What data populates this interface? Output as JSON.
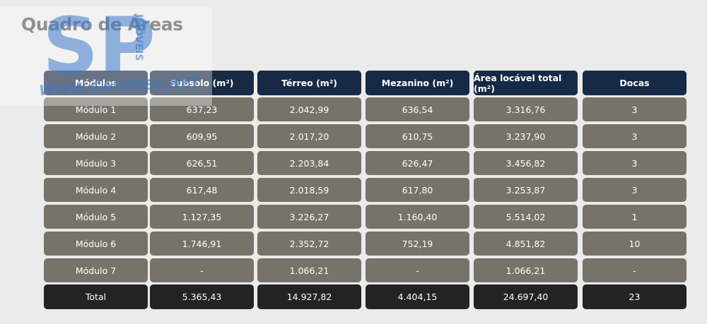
{
  "title": "Quadro de Áreas",
  "watermark": {
    "logo": "SP",
    "brand": "IMÓVEIS",
    "site": "WWW.GALPOES.NET"
  },
  "table": {
    "header": [
      "Módulos",
      "Subsolo (m²)",
      "Térreo (m²)",
      "Mezanino (m²)",
      "Área locável total (m²)",
      "Docas"
    ],
    "rows": [
      [
        "Módulo 1",
        "637,23",
        "2.042,99",
        "636,54",
        "3.316,76",
        "3"
      ],
      [
        "Módulo 2",
        "609,95",
        "2.017,20",
        "610,75",
        "3.237,90",
        "3"
      ],
      [
        "Módulo 3",
        "626,51",
        "2.203,84",
        "626,47",
        "3.456,82",
        "3"
      ],
      [
        "Módulo 4",
        "617,48",
        "2.018,59",
        "617,80",
        "3.253,87",
        "3"
      ],
      [
        "Módulo 5",
        "1.127,35",
        "3.226,27",
        "1.160,40",
        "5.514,02",
        "1"
      ],
      [
        "Módulo 6",
        "1.746,91",
        "2.352,72",
        "752,19",
        "4.851,82",
        "10"
      ],
      [
        "Módulo 7",
        "-",
        "1.066,21",
        "-",
        "1.066,21",
        "-"
      ]
    ],
    "total": [
      "Total",
      "5.365,43",
      "14.927,82",
      "4.404,15",
      "24.697,40",
      "23"
    ]
  }
}
